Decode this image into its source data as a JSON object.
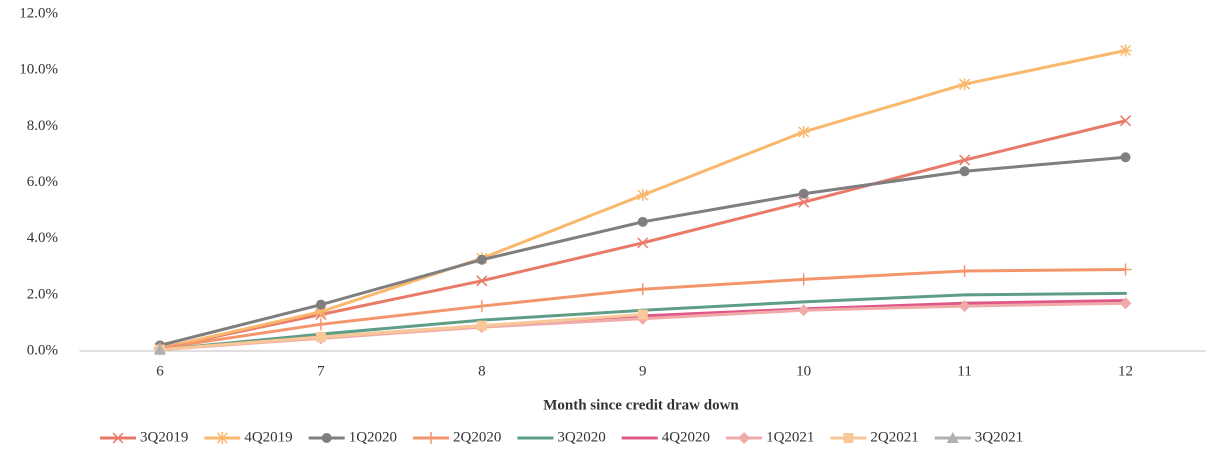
{
  "chart_data": {
    "type": "line",
    "x_label": "Month since credit draw down",
    "categories": [
      6,
      7,
      8,
      9,
      10,
      11,
      12
    ],
    "ylim": [
      0,
      12
    ],
    "yticks": [
      {
        "value": 0,
        "label": "0.0%"
      },
      {
        "value": 2,
        "label": "2.0%"
      },
      {
        "value": 4,
        "label": "4.0%"
      },
      {
        "value": 6,
        "label": "6.0%"
      },
      {
        "value": 8,
        "label": "8.0%"
      },
      {
        "value": 10,
        "label": "10.0%"
      },
      {
        "value": 12,
        "label": "12.0%"
      }
    ],
    "grid": false,
    "legend": "bottom",
    "series": [
      {
        "name": "3Q2019",
        "color": "#e97a68",
        "marker": "x",
        "values": [
          0.1,
          1.3,
          2.5,
          3.85,
          5.3,
          6.8,
          8.2
        ]
      },
      {
        "name": "4Q2019",
        "color": "#f9b86c",
        "marker": "star",
        "values": [
          0.1,
          1.4,
          3.3,
          5.55,
          7.8,
          9.5,
          10.7
        ]
      },
      {
        "name": "1Q2020",
        "color": "#7f7f7f",
        "marker": "circle",
        "values": [
          0.2,
          1.65,
          3.25,
          4.6,
          5.6,
          6.4,
          6.9
        ]
      },
      {
        "name": "2Q2020",
        "color": "#f4966c",
        "marker": "plus",
        "values": [
          0.1,
          0.95,
          1.6,
          2.2,
          2.55,
          2.85,
          2.9
        ]
      },
      {
        "name": "3Q2020",
        "color": "#5f9e86",
        "marker": "none",
        "values": [
          0.05,
          0.6,
          1.1,
          1.45,
          1.75,
          2.0,
          2.05
        ]
      },
      {
        "name": "4Q2020",
        "color": "#e0588a",
        "marker": "none",
        "values": [
          0.05,
          0.5,
          0.9,
          1.25,
          1.5,
          1.7,
          1.8
        ]
      },
      {
        "name": "1Q2021",
        "color": "#f0aaa8",
        "marker": "diamond",
        "values": [
          0.05,
          0.45,
          0.85,
          1.15,
          1.45,
          1.6,
          1.7
        ]
      },
      {
        "name": "2Q2021",
        "color": "#f9c898",
        "marker": "square",
        "values": [
          0.05,
          0.5,
          0.9,
          1.3,
          null,
          null,
          null
        ]
      },
      {
        "name": "3Q2021",
        "color": "#b0b0b0",
        "marker": "triangle",
        "values": [
          0.05,
          null,
          null,
          null,
          null,
          null,
          null
        ]
      }
    ]
  }
}
